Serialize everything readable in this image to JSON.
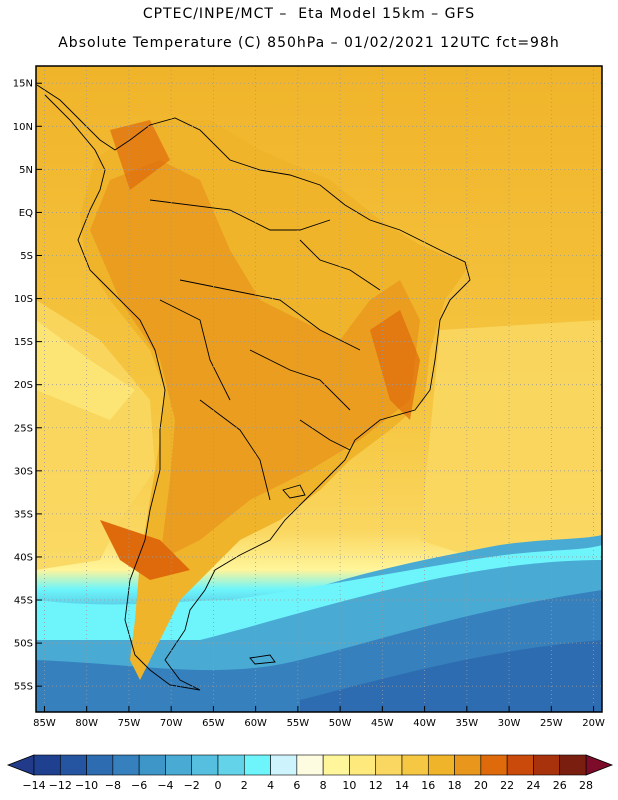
{
  "header": {
    "line1": "CPTEC/INPE/MCT –  Eta Model 15km – GFS",
    "line2": "Absolute Temperature (C) 850hPa – 01/02/2021 12UTC fct=98h"
  },
  "map": {
    "lon_range": [
      -86,
      -19
    ],
    "lat_range": [
      -58,
      17
    ],
    "lat_ticks": [
      {
        "value": 15,
        "label": "15N"
      },
      {
        "value": 10,
        "label": "10N"
      },
      {
        "value": 5,
        "label": "5N"
      },
      {
        "value": 0,
        "label": "EQ"
      },
      {
        "value": -5,
        "label": "5S"
      },
      {
        "value": -10,
        "label": "10S"
      },
      {
        "value": -15,
        "label": "15S"
      },
      {
        "value": -20,
        "label": "20S"
      },
      {
        "value": -25,
        "label": "25S"
      },
      {
        "value": -30,
        "label": "30S"
      },
      {
        "value": -35,
        "label": "35S"
      },
      {
        "value": -40,
        "label": "40S"
      },
      {
        "value": -45,
        "label": "45S"
      },
      {
        "value": -50,
        "label": "50S"
      },
      {
        "value": -55,
        "label": "55S"
      }
    ],
    "lon_ticks": [
      {
        "value": -85,
        "label": "85W"
      },
      {
        "value": -80,
        "label": "80W"
      },
      {
        "value": -75,
        "label": "75W"
      },
      {
        "value": -70,
        "label": "70W"
      },
      {
        "value": -65,
        "label": "65W"
      },
      {
        "value": -60,
        "label": "60W"
      },
      {
        "value": -55,
        "label": "55W"
      },
      {
        "value": -50,
        "label": "50W"
      },
      {
        "value": -45,
        "label": "45W"
      },
      {
        "value": -40,
        "label": "40W"
      },
      {
        "value": -35,
        "label": "35W"
      },
      {
        "value": -30,
        "label": "30W"
      },
      {
        "value": -25,
        "label": "25W"
      },
      {
        "value": -20,
        "label": "20W"
      }
    ]
  },
  "colorbar": {
    "labels": [
      "-14",
      "-12",
      "-10",
      "-8",
      "-6",
      "-4",
      "-2",
      "0",
      "2",
      "4",
      "6",
      "8",
      "10",
      "12",
      "14",
      "16",
      "18",
      "20",
      "22",
      "24",
      "26",
      "28"
    ],
    "colors": [
      "#1f3f8f",
      "#2555a0",
      "#2d6cb0",
      "#3580bd",
      "#3d95c8",
      "#49aad4",
      "#56bfdf",
      "#63d3ea",
      "#6ef5fb",
      "#cdf3fc",
      "#fdfbe0",
      "#fff59a",
      "#fde97c",
      "#fad760",
      "#f6c742",
      "#f0b42a",
      "#e8961c",
      "#de6a0c",
      "#c94a0a",
      "#a8320c",
      "#7a1f10"
    ],
    "low_color": "#223a8a",
    "high_color": "#7c0c2a"
  }
}
